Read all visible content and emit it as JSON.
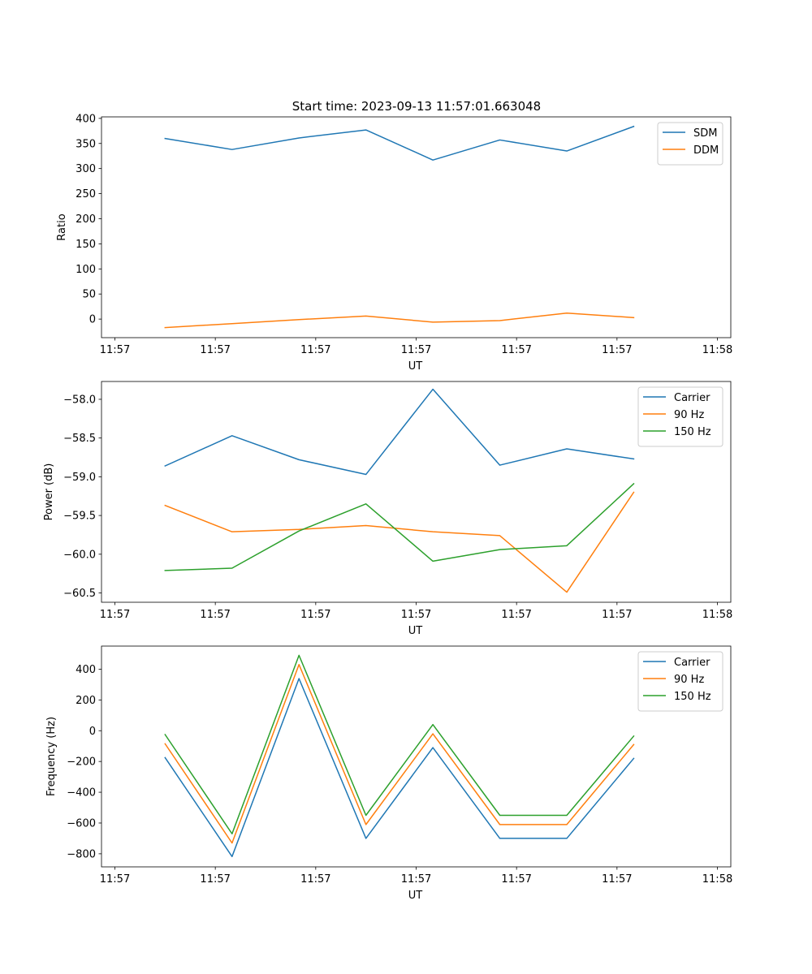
{
  "figure": {
    "title": "Start time: 2023-09-13 11:57:01.663048"
  },
  "colors": {
    "blue": "#1f77b4",
    "orange": "#ff7f0e",
    "green": "#2ca02c"
  },
  "chart_data": [
    {
      "type": "line",
      "title": "Start time: 2023-09-13 11:57:01.663048",
      "xlabel": "UT",
      "ylabel": "Ratio",
      "xlim": [
        -0.2,
        9.2
      ],
      "ylim": [
        -37,
        403
      ],
      "x_ticks": [
        0,
        1.5,
        3,
        4.5,
        6,
        7.5,
        9
      ],
      "x_tick_labels": [
        "11:57",
        "11:57",
        "11:57",
        "11:57",
        "11:57",
        "11:57",
        "11:58"
      ],
      "y_ticks": [
        0,
        50,
        100,
        150,
        200,
        250,
        300,
        350,
        400
      ],
      "y_tick_labels": [
        "0",
        "50",
        "100",
        "150",
        "200",
        "250",
        "300",
        "350",
        "400"
      ],
      "grid": false,
      "legend_position": "top-right",
      "x": [
        0.75,
        1.75,
        2.75,
        3.75,
        4.75,
        5.75,
        6.75,
        7.75
      ],
      "series": [
        {
          "name": "SDM",
          "color": "#1f77b4",
          "values": [
            360,
            338,
            361,
            377,
            317,
            357,
            335,
            384
          ]
        },
        {
          "name": "DDM",
          "color": "#ff7f0e",
          "values": [
            -17,
            -9,
            -1,
            6,
            -6,
            -3,
            12,
            3
          ]
        }
      ]
    },
    {
      "type": "line",
      "title": "",
      "xlabel": "UT",
      "ylabel": "Power (dB)",
      "xlim": [
        -0.2,
        9.2
      ],
      "ylim": [
        -60.62,
        -57.77
      ],
      "x_ticks": [
        0,
        1.5,
        3,
        4.5,
        6,
        7.5,
        9
      ],
      "x_tick_labels": [
        "11:57",
        "11:57",
        "11:57",
        "11:57",
        "11:57",
        "11:57",
        "11:58"
      ],
      "y_ticks": [
        -60.5,
        -60.0,
        -59.5,
        -59.0,
        -58.5,
        -58.0
      ],
      "y_tick_labels": [
        "−60.5",
        "−60.0",
        "−59.5",
        "−59.0",
        "−58.5",
        "−58.0"
      ],
      "grid": false,
      "legend_position": "top-right",
      "x": [
        0.75,
        1.75,
        2.75,
        3.75,
        4.75,
        5.75,
        6.75,
        7.75
      ],
      "series": [
        {
          "name": "Carrier",
          "color": "#1f77b4",
          "values": [
            -58.86,
            -58.47,
            -58.78,
            -58.97,
            -57.87,
            -58.85,
            -58.64,
            -58.77
          ]
        },
        {
          "name": "90 Hz",
          "color": "#ff7f0e",
          "values": [
            -59.37,
            -59.71,
            -59.68,
            -59.63,
            -59.71,
            -59.76,
            -60.49,
            -59.2
          ]
        },
        {
          "name": "150 Hz",
          "color": "#2ca02c",
          "values": [
            -60.21,
            -60.18,
            -59.7,
            -59.35,
            -60.09,
            -59.94,
            -59.89,
            -59.09
          ]
        }
      ]
    },
    {
      "type": "line",
      "title": "",
      "xlabel": "UT",
      "ylabel": "Frequency (Hz)",
      "xlim": [
        -0.2,
        9.2
      ],
      "ylim": [
        -885,
        550
      ],
      "x_ticks": [
        0,
        1.5,
        3,
        4.5,
        6,
        7.5,
        9
      ],
      "x_tick_labels": [
        "11:57",
        "11:57",
        "11:57",
        "11:57",
        "11:57",
        "11:57",
        "11:58"
      ],
      "y_ticks": [
        -800,
        -600,
        -400,
        -200,
        0,
        200,
        400
      ],
      "y_tick_labels": [
        "−800",
        "−600",
        "−400",
        "−200",
        "0",
        "200",
        "400"
      ],
      "grid": false,
      "legend_position": "top-right",
      "x": [
        0.75,
        1.75,
        2.75,
        3.75,
        4.75,
        5.75,
        6.75,
        7.75
      ],
      "series": [
        {
          "name": "Carrier",
          "color": "#1f77b4",
          "values": [
            -175,
            -818,
            339,
            -700,
            -110,
            -700,
            -700,
            -180
          ]
        },
        {
          "name": "90 Hz",
          "color": "#ff7f0e",
          "values": [
            -85,
            -730,
            430,
            -610,
            -20,
            -610,
            -610,
            -90
          ]
        },
        {
          "name": "150 Hz",
          "color": "#2ca02c",
          "values": [
            -25,
            -670,
            490,
            -550,
            40,
            -550,
            -550,
            -35
          ]
        }
      ]
    }
  ]
}
